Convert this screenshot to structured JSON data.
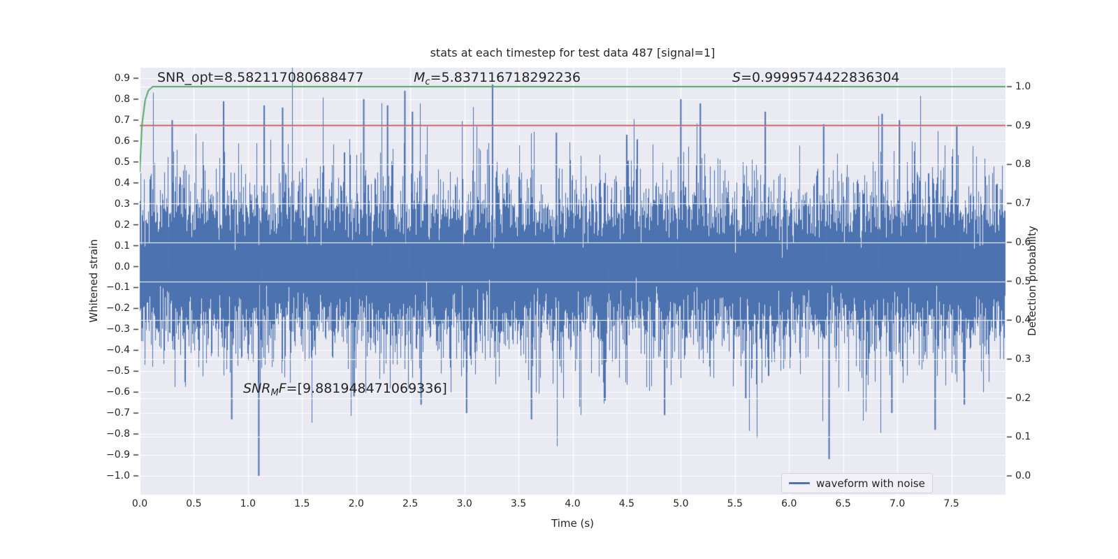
{
  "colors": {
    "figure_background": "#ffffff",
    "axes_background": "#EAEAF2",
    "grid": "#ffffff",
    "waveform_blue": "#4C72B0",
    "green_line": "#55A868",
    "red_line": "#C44E52",
    "text": "#262626",
    "tick_mark": "#3a3a3a"
  },
  "chart_data": {
    "type": "line",
    "title": "stats at each timestep for test data 487 [signal=1]",
    "xlabel": "Time (s)",
    "ylabel_left": "Whitened strain",
    "ylabel_right": "Detection probability",
    "xlim": [
      0,
      8.0
    ],
    "ylim_left": [
      -1.09,
      0.95
    ],
    "right_axis_mapping": {
      "slope": 1.86,
      "intercept": -1.0
    },
    "grid": true,
    "legend": [
      "waveform with noise"
    ],
    "legend_position": "lower right",
    "xticks": [
      {
        "v": 0.0,
        "label": "0.0"
      },
      {
        "v": 0.5,
        "label": "0.5"
      },
      {
        "v": 1.0,
        "label": "1.0"
      },
      {
        "v": 1.5,
        "label": "1.5"
      },
      {
        "v": 2.0,
        "label": "2.0"
      },
      {
        "v": 2.5,
        "label": "2.5"
      },
      {
        "v": 3.0,
        "label": "3.0"
      },
      {
        "v": 3.5,
        "label": "3.5"
      },
      {
        "v": 4.0,
        "label": "4.0"
      },
      {
        "v": 4.5,
        "label": "4.5"
      },
      {
        "v": 5.0,
        "label": "5.0"
      },
      {
        "v": 5.5,
        "label": "5.5"
      },
      {
        "v": 6.0,
        "label": "6.0"
      },
      {
        "v": 6.5,
        "label": "6.5"
      },
      {
        "v": 7.0,
        "label": "7.0"
      },
      {
        "v": 7.5,
        "label": "7.5"
      }
    ],
    "yticks_left": [
      {
        "v": 0.9,
        "label": "0.9"
      },
      {
        "v": 0.8,
        "label": "0.8"
      },
      {
        "v": 0.7,
        "label": "0.7"
      },
      {
        "v": 0.6,
        "label": "0.6"
      },
      {
        "v": 0.5,
        "label": "0.5"
      },
      {
        "v": 0.4,
        "label": "0.4"
      },
      {
        "v": 0.3,
        "label": "0.3"
      },
      {
        "v": 0.2,
        "label": "0.2"
      },
      {
        "v": 0.1,
        "label": "0.1"
      },
      {
        "v": 0.0,
        "label": "0.0"
      },
      {
        "v": -0.1,
        "label": "−0.1"
      },
      {
        "v": -0.2,
        "label": "−0.2"
      },
      {
        "v": -0.3,
        "label": "−0.3"
      },
      {
        "v": -0.4,
        "label": "−0.4"
      },
      {
        "v": -0.5,
        "label": "−0.5"
      },
      {
        "v": -0.6,
        "label": "−0.6"
      },
      {
        "v": -0.7,
        "label": "−0.7"
      },
      {
        "v": -0.8,
        "label": "−0.8"
      },
      {
        "v": -0.9,
        "label": "−0.9"
      },
      {
        "v": -1.0,
        "label": "−1.0"
      }
    ],
    "yticks_right": [
      {
        "p": 1.0,
        "label": "1.0"
      },
      {
        "p": 0.9,
        "label": "0.9"
      },
      {
        "p": 0.8,
        "label": "0.8"
      },
      {
        "p": 0.7,
        "label": "0.7"
      },
      {
        "p": 0.6,
        "label": "0.6"
      },
      {
        "p": 0.5,
        "label": "0.5"
      },
      {
        "p": 0.4,
        "label": "0.4"
      },
      {
        "p": 0.3,
        "label": "0.3"
      },
      {
        "p": 0.2,
        "label": "0.2"
      },
      {
        "p": 0.1,
        "label": "0.1"
      },
      {
        "p": 0.0,
        "label": "0.0"
      }
    ],
    "red_threshold_line": {
      "probability": 0.9
    },
    "green_curve_probability": [
      [
        0.0,
        0.78
      ],
      [
        0.02,
        0.9
      ],
      [
        0.05,
        0.965
      ],
      [
        0.08,
        0.99
      ],
      [
        0.12,
        1.0
      ],
      [
        8.0,
        1.0
      ]
    ],
    "annotations": [
      {
        "id": "snr_opt",
        "segments": [
          [
            "n",
            "SNR_opt=8.582117080688477"
          ]
        ]
      },
      {
        "id": "mc",
        "segments": [
          [
            "i",
            "M"
          ],
          [
            "s",
            "c"
          ],
          [
            "n",
            "=5.837116718292236"
          ]
        ]
      },
      {
        "id": "s",
        "segments": [
          [
            "i",
            "S"
          ],
          [
            "n",
            "=0.9999574422836304"
          ]
        ]
      },
      {
        "id": "snr_mf",
        "segments": [
          [
            "i",
            "SNR"
          ],
          [
            "s",
            "M"
          ],
          [
            "i",
            "F"
          ],
          [
            "n",
            "=[9.881948471069336]"
          ]
        ]
      }
    ],
    "noise_band": {
      "seed": 1487,
      "sigma": 0.165,
      "samples_per_column": 14,
      "tail_probability": 0.12,
      "tail_base": 0.4,
      "tail_scale": 0.11
    },
    "feature_spikes": [
      [
        0.3,
        0.7
      ],
      [
        0.775,
        0.79
      ],
      [
        0.85,
        -0.73
      ],
      [
        1.1,
        -1.0
      ],
      [
        1.15,
        0.77
      ],
      [
        1.32,
        0.76
      ],
      [
        1.98,
        -0.62
      ],
      [
        2.07,
        0.8
      ],
      [
        2.29,
        0.77
      ],
      [
        2.45,
        0.84
      ],
      [
        2.52,
        0.74
      ],
      [
        2.6,
        -0.66
      ],
      [
        3.02,
        -0.7
      ],
      [
        3.26,
        0.87
      ],
      [
        3.62,
        -0.73
      ],
      [
        3.85,
        0.64
      ],
      [
        4.3,
        -0.64
      ],
      [
        4.5,
        0.63
      ],
      [
        4.85,
        -0.71
      ],
      [
        5.0,
        0.8
      ],
      [
        5.18,
        0.78
      ],
      [
        5.6,
        -0.63
      ],
      [
        5.78,
        0.74
      ],
      [
        6.32,
        0.68
      ],
      [
        6.37,
        -0.92
      ],
      [
        6.86,
        0.73
      ],
      [
        6.95,
        -0.7
      ],
      [
        7.02,
        0.7
      ],
      [
        7.35,
        -0.78
      ],
      [
        7.55,
        0.67
      ],
      [
        7.62,
        -0.66
      ]
    ]
  }
}
